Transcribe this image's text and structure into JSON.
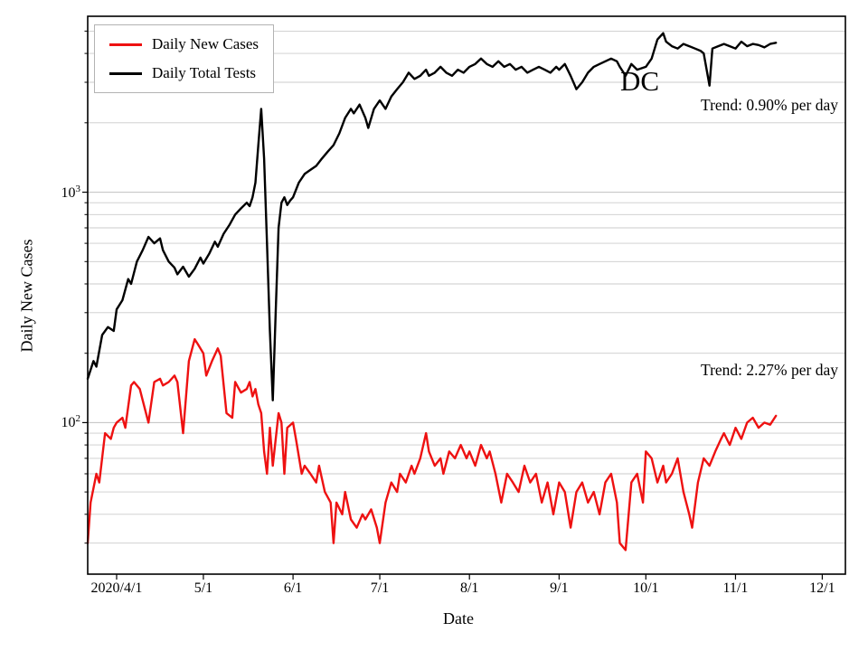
{
  "chart_data": {
    "type": "line",
    "title": "",
    "xlabel": "Date",
    "ylabel": "Daily New Cases",
    "yscale": "log",
    "ylim": [
      22,
      5800
    ],
    "xlim_days": [
      0,
      262
    ],
    "x_unit": "days since 2020-03-22",
    "grid": "horizontal, major and minor (log)",
    "legend_position": "upper left",
    "x_ticks": [
      {
        "day": 10,
        "label": "2020/4/1"
      },
      {
        "day": 40,
        "label": "5/1"
      },
      {
        "day": 71,
        "label": "6/1"
      },
      {
        "day": 101,
        "label": "7/1"
      },
      {
        "day": 132,
        "label": "8/1"
      },
      {
        "day": 163,
        "label": "9/1"
      },
      {
        "day": 193,
        "label": "10/1"
      },
      {
        "day": 224,
        "label": "11/1"
      },
      {
        "day": 254,
        "label": "12/1"
      }
    ],
    "y_ticks": [
      {
        "value": 100,
        "base": "10",
        "exp": "2"
      },
      {
        "value": 1000,
        "base": "10",
        "exp": "3"
      }
    ],
    "annotations": [
      {
        "text": "DC"
      },
      {
        "text": "Trend: 0.90% per day"
      },
      {
        "text": "Trend: 2.27% per day"
      }
    ],
    "series": [
      {
        "name": "Daily New Cases",
        "color": "#ee1111",
        "x": [
          0,
          1,
          3,
          4,
          6,
          8,
          9,
          10,
          12,
          13,
          15,
          16,
          18,
          19,
          21,
          23,
          25,
          26,
          28,
          30,
          31,
          33,
          35,
          37,
          38,
          40,
          41,
          43,
          45,
          46,
          48,
          50,
          51,
          53,
          55,
          56,
          57,
          58,
          59,
          60,
          61,
          62,
          63,
          64,
          66,
          67,
          68,
          69,
          71,
          72,
          74,
          75,
          77,
          79,
          80,
          82,
          84,
          85,
          86,
          88,
          89,
          91,
          93,
          95,
          96,
          98,
          100,
          101,
          103,
          105,
          107,
          108,
          110,
          112,
          113,
          115,
          117,
          118,
          120,
          122,
          123,
          125,
          127,
          129,
          131,
          132,
          134,
          136,
          138,
          139,
          141,
          143,
          145,
          147,
          149,
          151,
          153,
          155,
          157,
          159,
          161,
          163,
          165,
          167,
          169,
          171,
          173,
          175,
          177,
          179,
          181,
          183,
          184,
          186,
          188,
          190,
          192,
          193,
          195,
          197,
          199,
          200,
          202,
          204,
          206,
          208,
          209,
          211,
          213,
          215,
          217,
          219,
          220,
          222,
          224,
          226,
          228,
          230,
          232,
          234,
          236,
          238
        ],
        "y": [
          30,
          45,
          60,
          55,
          90,
          85,
          95,
          100,
          105,
          95,
          145,
          150,
          140,
          125,
          100,
          150,
          155,
          145,
          150,
          160,
          150,
          90,
          185,
          230,
          220,
          200,
          160,
          185,
          210,
          195,
          110,
          105,
          150,
          135,
          140,
          150,
          130,
          140,
          120,
          110,
          75,
          60,
          95,
          65,
          110,
          100,
          60,
          95,
          100,
          85,
          60,
          65,
          60,
          55,
          65,
          50,
          45,
          30,
          45,
          40,
          50,
          38,
          35,
          40,
          38,
          42,
          35,
          30,
          45,
          55,
          50,
          60,
          55,
          65,
          60,
          70,
          90,
          75,
          65,
          70,
          60,
          75,
          70,
          80,
          70,
          75,
          65,
          80,
          70,
          75,
          60,
          45,
          60,
          55,
          50,
          65,
          55,
          60,
          45,
          55,
          40,
          55,
          50,
          35,
          50,
          55,
          45,
          50,
          40,
          55,
          60,
          45,
          30,
          28,
          55,
          60,
          45,
          75,
          70,
          55,
          65,
          55,
          60,
          70,
          50,
          40,
          35,
          55,
          70,
          65,
          75,
          85,
          90,
          80,
          95,
          85,
          100,
          105,
          95,
          100,
          98,
          107
        ]
      },
      {
        "name": "Daily Total Tests",
        "color": "#000000",
        "x": [
          0,
          2,
          3,
          5,
          7,
          9,
          10,
          12,
          14,
          15,
          17,
          19,
          21,
          23,
          25,
          26,
          28,
          30,
          31,
          33,
          35,
          37,
          39,
          40,
          42,
          44,
          45,
          47,
          49,
          51,
          53,
          55,
          56,
          57,
          58,
          59,
          60,
          61,
          62,
          63,
          64,
          65,
          66,
          67,
          68,
          69,
          70,
          71,
          73,
          75,
          77,
          79,
          81,
          83,
          85,
          87,
          89,
          91,
          92,
          94,
          96,
          97,
          99,
          101,
          103,
          105,
          107,
          109,
          111,
          113,
          115,
          117,
          118,
          120,
          122,
          124,
          126,
          128,
          130,
          132,
          134,
          136,
          138,
          140,
          142,
          144,
          146,
          148,
          150,
          152,
          154,
          156,
          158,
          160,
          162,
          163,
          165,
          167,
          169,
          171,
          173,
          175,
          177,
          179,
          181,
          183,
          184,
          186,
          188,
          190,
          193,
          195,
          197,
          199,
          200,
          202,
          204,
          206,
          208,
          210,
          212,
          213,
          215,
          216,
          218,
          220,
          222,
          224,
          226,
          228,
          230,
          232,
          234,
          236,
          238
        ],
        "y": [
          155,
          185,
          175,
          240,
          260,
          250,
          310,
          340,
          420,
          400,
          500,
          560,
          640,
          600,
          630,
          560,
          500,
          470,
          440,
          475,
          430,
          465,
          520,
          490,
          540,
          610,
          580,
          660,
          720,
          800,
          850,
          900,
          870,
          950,
          1100,
          1600,
          2300,
          1400,
          600,
          250,
          125,
          300,
          700,
          900,
          950,
          880,
          920,
          950,
          1100,
          1200,
          1250,
          1300,
          1400,
          1500,
          1600,
          1800,
          2100,
          2300,
          2200,
          2400,
          2100,
          1900,
          2300,
          2500,
          2300,
          2600,
          2800,
          3000,
          3300,
          3100,
          3200,
          3400,
          3200,
          3300,
          3500,
          3300,
          3200,
          3400,
          3300,
          3500,
          3600,
          3800,
          3600,
          3500,
          3700,
          3500,
          3600,
          3400,
          3500,
          3300,
          3400,
          3500,
          3400,
          3300,
          3500,
          3400,
          3600,
          3200,
          2800,
          3000,
          3300,
          3500,
          3600,
          3700,
          3800,
          3700,
          3500,
          3200,
          3600,
          3400,
          3500,
          3800,
          4600,
          4900,
          4500,
          4300,
          4200,
          4400,
          4300,
          4200,
          4100,
          4000,
          2900,
          4200,
          4300,
          4400,
          4300,
          4200,
          4500,
          4300,
          4400,
          4350,
          4250,
          4400,
          4450
        ]
      }
    ]
  }
}
